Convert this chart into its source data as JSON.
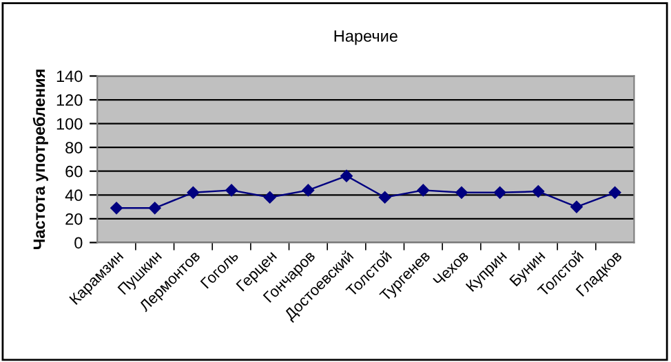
{
  "chart_data": {
    "type": "line",
    "title": "Наречие",
    "ylabel": "Частота употребления",
    "categories": [
      "Карамзин",
      "Пушкин",
      "Лермонтов",
      "Гоголь",
      "Герцен",
      "Гончаров",
      "Достоевский",
      "Толстой",
      "Тургенев",
      "Чехов",
      "Куприн",
      "Бунин",
      "Толстой",
      "Гладков"
    ],
    "series": [
      {
        "color": "#000080",
        "values": [
          29,
          29,
          42,
          44,
          38,
          44,
          56,
          38,
          44,
          42,
          42,
          43,
          30,
          42
        ]
      }
    ],
    "ylim": [
      0,
      140
    ],
    "yticks": [
      0,
      20,
      40,
      60,
      80,
      100,
      120,
      140
    ],
    "grid": "y",
    "marker": "diamond",
    "line_style": "solid",
    "legend": false
  }
}
